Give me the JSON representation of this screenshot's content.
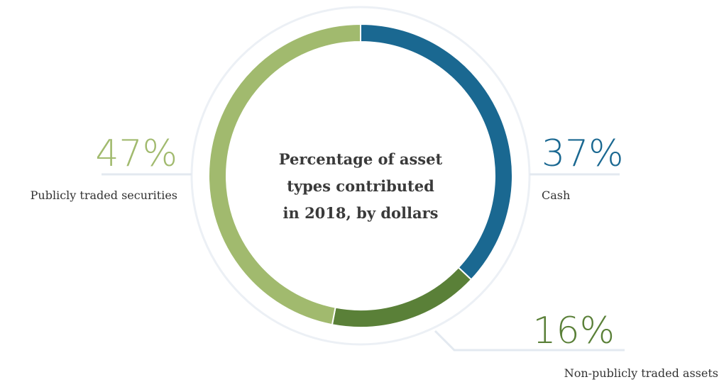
{
  "chart_data": {
    "type": "pie",
    "title": "Percentage of asset types contributed in 2018, by dollars",
    "title_lines": [
      "Percentage of asset",
      "types contributed",
      "in 2018, by dollars"
    ],
    "slices": [
      {
        "label": "Cash",
        "value": 37,
        "display": "37%",
        "color": "#1a6891"
      },
      {
        "label": "Non-publicly traded assets",
        "value": 16,
        "display": "16%",
        "color": "#5a8038"
      },
      {
        "label": "Publicly traded securities",
        "value": 47,
        "display": "47%",
        "color": "#a1ba6e"
      }
    ],
    "accent_colors": {
      "outer_ring": "#ecf0f5",
      "connector": "#e3e9f0"
    }
  }
}
